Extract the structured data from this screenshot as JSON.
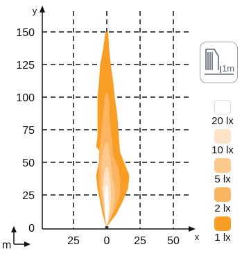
{
  "chart_data": {
    "type": "area",
    "xlabel": "x",
    "ylabel": "y",
    "unit_label": "m",
    "x_tick_labels": [
      "25",
      "0",
      "25",
      "50"
    ],
    "x_tick_values": [
      -25,
      0,
      25,
      50
    ],
    "y_ticks": [
      0,
      25,
      50,
      75,
      100,
      125,
      150
    ],
    "xlim": [
      -55,
      63
    ],
    "ylim": [
      0,
      155
    ],
    "grid": true,
    "legend_position": "right",
    "mount_icon": "luminaire-mounting-icon",
    "mount_label": "1m",
    "contours": [
      {
        "label": "1 lx",
        "color": "#f89e24",
        "left": [
          [
            150,
            -1
          ],
          [
            135,
            -3
          ],
          [
            125,
            -5
          ],
          [
            110,
            -6
          ],
          [
            100,
            -7
          ],
          [
            85,
            -7
          ],
          [
            70,
            -7
          ],
          [
            62,
            -8
          ],
          [
            58,
            -5
          ],
          [
            50,
            -6
          ],
          [
            40,
            -8
          ],
          [
            30,
            -7
          ],
          [
            20,
            -5
          ],
          [
            10,
            -3
          ],
          [
            2,
            -1
          ]
        ],
        "right": [
          [
            2,
            1
          ],
          [
            10,
            7
          ],
          [
            20,
            12
          ],
          [
            30,
            16
          ],
          [
            40,
            17
          ],
          [
            50,
            13
          ],
          [
            58,
            10
          ],
          [
            70,
            9
          ],
          [
            85,
            8
          ],
          [
            100,
            6
          ],
          [
            110,
            5
          ],
          [
            125,
            3
          ],
          [
            135,
            2
          ],
          [
            150,
            1
          ]
        ]
      },
      {
        "label": "2 lx",
        "color": "#fbb460",
        "left": [
          [
            103,
            -1
          ],
          [
            95,
            -2
          ],
          [
            85,
            -3
          ],
          [
            75,
            -4
          ],
          [
            65,
            -5
          ],
          [
            55,
            -6
          ],
          [
            45,
            -6
          ],
          [
            35,
            -6
          ],
          [
            25,
            -5
          ],
          [
            15,
            -3
          ],
          [
            5,
            -1
          ]
        ],
        "right": [
          [
            5,
            1
          ],
          [
            15,
            7
          ],
          [
            25,
            10
          ],
          [
            35,
            10
          ],
          [
            45,
            9
          ],
          [
            55,
            5
          ],
          [
            65,
            4
          ],
          [
            75,
            3
          ],
          [
            85,
            2
          ],
          [
            95,
            2
          ],
          [
            103,
            1
          ]
        ]
      },
      {
        "label": "5 lx",
        "color": "#fcc98d",
        "left": [
          [
            65,
            -1
          ],
          [
            58,
            -3
          ],
          [
            50,
            -4
          ],
          [
            40,
            -4
          ],
          [
            30,
            -4
          ],
          [
            20,
            -3
          ],
          [
            10,
            -2
          ],
          [
            3,
            -1
          ]
        ],
        "right": [
          [
            3,
            1
          ],
          [
            10,
            4
          ],
          [
            20,
            6
          ],
          [
            30,
            6
          ],
          [
            40,
            4
          ],
          [
            50,
            3
          ],
          [
            58,
            2
          ],
          [
            65,
            1
          ]
        ]
      },
      {
        "label": "10 lx",
        "color": "#fde3c8",
        "left": [
          [
            46,
            -1
          ],
          [
            40,
            -2
          ],
          [
            30,
            -3
          ],
          [
            20,
            -2
          ],
          [
            10,
            -1
          ],
          [
            3,
            -0.5
          ]
        ],
        "right": [
          [
            3,
            0.5
          ],
          [
            10,
            2
          ],
          [
            20,
            3
          ],
          [
            30,
            3
          ],
          [
            40,
            2
          ],
          [
            46,
            1
          ]
        ]
      },
      {
        "label": "20 lx",
        "color": "#ffffff",
        "left": [
          [
            32,
            -1
          ],
          [
            25,
            -1.5
          ],
          [
            15,
            -1.5
          ],
          [
            7,
            -1
          ],
          [
            2,
            -0.3
          ]
        ],
        "right": [
          [
            2,
            0.3
          ],
          [
            7,
            1
          ],
          [
            15,
            1.5
          ],
          [
            25,
            1
          ],
          [
            32,
            0.5
          ]
        ]
      }
    ],
    "legend": [
      {
        "label": "20 lx",
        "color": "#ffffff"
      },
      {
        "label": "10 lx",
        "color": "#fde3c8"
      },
      {
        "label": "5 lx",
        "color": "#fcc98d"
      },
      {
        "label": "2 lx",
        "color": "#fbb460"
      },
      {
        "label": "1 lx",
        "color": "#f89e24"
      }
    ]
  }
}
